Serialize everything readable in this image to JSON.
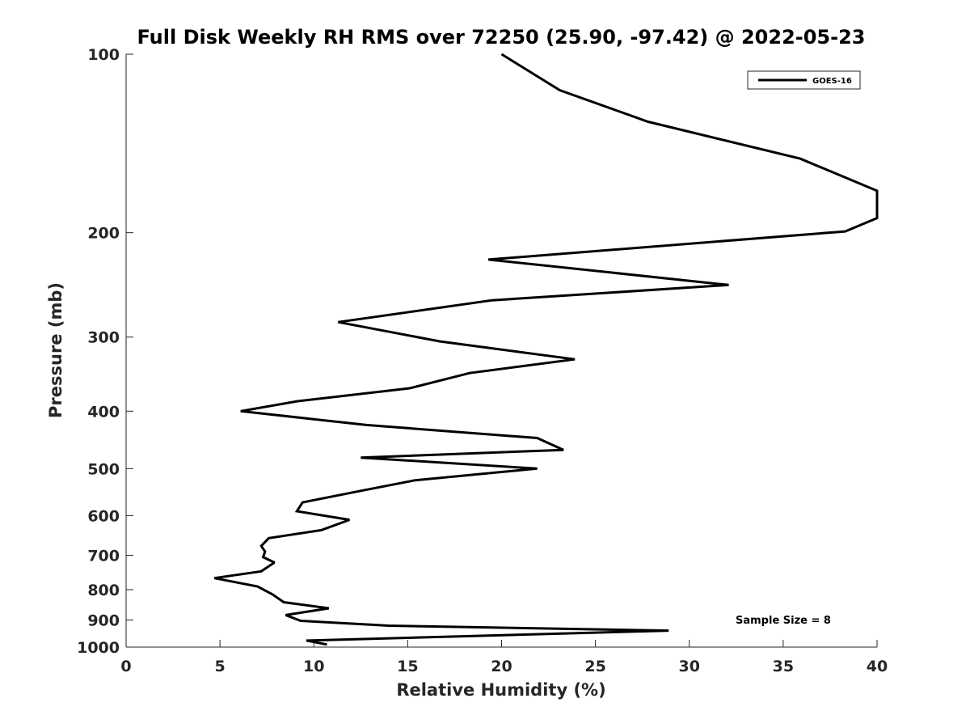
{
  "chart_data": {
    "type": "line",
    "title": "Full Disk Weekly RH RMS over 72250 (25.90, -97.42) @ 2022-05-23",
    "xlabel": "Relative Humidity (%)",
    "ylabel": "Pressure (mb)",
    "xlim": [
      0,
      40
    ],
    "ylim": [
      1000,
      100
    ],
    "yscale": "log",
    "grid": false,
    "legend_position": "top-right",
    "xticks": [
      "0",
      "5",
      "10",
      "15",
      "20",
      "25",
      "30",
      "35",
      "40"
    ],
    "yticks": [
      {
        "value": 100,
        "label": "100"
      },
      {
        "value": 200,
        "label": "200"
      },
      {
        "value": 300,
        "label": "300"
      },
      {
        "value": 400,
        "label": "400"
      },
      {
        "value": 500,
        "label": "500"
      },
      {
        "value": 600,
        "label": "600"
      },
      {
        "value": 700,
        "label": "700"
      },
      {
        "value": 800,
        "label": "800"
      },
      {
        "value": 900,
        "label": "900"
      },
      {
        "value": 1000,
        "label": "1000"
      }
    ],
    "series": [
      {
        "name": "GOES-16",
        "color": "#000000",
        "x": [
          20.0,
          23.1,
          27.8,
          35.9,
          40.2,
          40.2,
          38.3,
          19.3,
          32.1,
          19.5,
          11.3,
          16.7,
          23.9,
          18.3,
          15.1,
          9.1,
          6.1,
          12.8,
          21.9,
          23.3,
          12.5,
          21.9,
          15.4,
          12.5,
          9.4,
          9.1,
          11.9,
          10.4,
          7.6,
          7.2,
          7.4,
          7.3,
          7.9,
          7.2,
          4.7,
          7.0,
          7.8,
          8.4,
          10.8,
          8.5,
          9.3,
          14.0,
          28.9,
          9.6,
          10.7
        ],
        "y": [
          100,
          115,
          130,
          150,
          170,
          189,
          199,
          222,
          245,
          260,
          283,
          305,
          327,
          345,
          366,
          385,
          400,
          422,
          444,
          465,
          479,
          500,
          523,
          545,
          570,
          590,
          610,
          635,
          655,
          675,
          690,
          705,
          720,
          745,
          765,
          790,
          815,
          840,
          860,
          883,
          903,
          920,
          938,
          975,
          990
        ]
      }
    ],
    "annotations": [
      {
        "text": "Sample Size = 8"
      }
    ]
  }
}
